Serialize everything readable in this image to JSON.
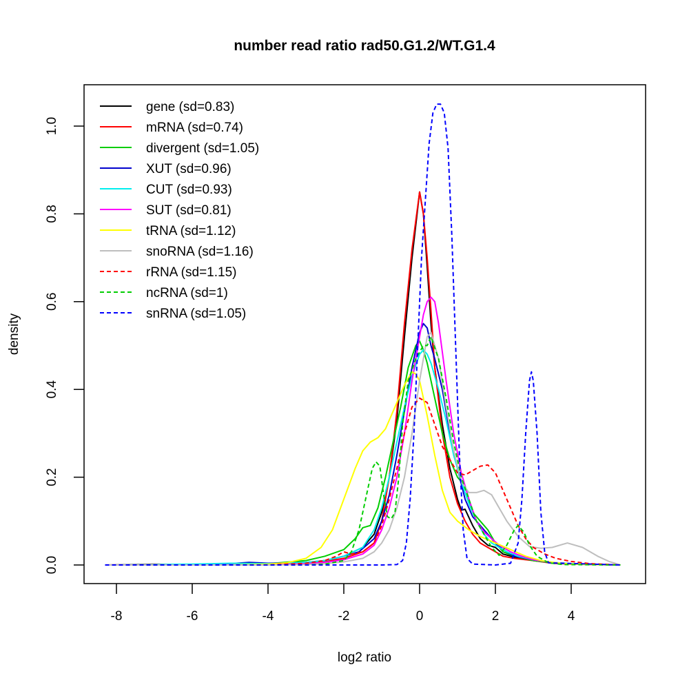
{
  "chart_data": {
    "type": "line",
    "title": "number read ratio rad50.G1.2/WT.G1.4",
    "xlabel": "log2 ratio",
    "ylabel": "density",
    "xlim": [
      -8.5,
      6.0
    ],
    "ylim": [
      -0.04,
      1.1
    ],
    "xticks": [
      -8,
      -6,
      -4,
      -2,
      0,
      2,
      4
    ],
    "xtick_labels": [
      "-8",
      "-6",
      "-4",
      "-2",
      "0",
      "2",
      "4"
    ],
    "yticks": [
      0.0,
      0.2,
      0.4,
      0.6,
      0.8,
      1.0
    ],
    "ytick_labels": [
      "0.0",
      "0.2",
      "0.4",
      "0.6",
      "0.8",
      "1.0"
    ],
    "grid": false,
    "legend_position": "top-left",
    "series": [
      {
        "name": "gene (sd=0.83)",
        "color": "#000000",
        "dash": "solid",
        "x": [
          -8.3,
          -6,
          -4,
          -3,
          -2.5,
          -2,
          -1.5,
          -1.2,
          -1.0,
          -0.8,
          -0.6,
          -0.4,
          -0.2,
          0.0,
          0.1,
          0.2,
          0.3,
          0.4,
          0.6,
          0.8,
          1.0,
          1.1,
          1.2,
          1.4,
          1.6,
          1.8,
          2.0,
          2.2,
          2.5,
          3.0,
          3.5,
          4.0,
          5.3
        ],
        "y": [
          0,
          0,
          0.002,
          0.005,
          0.01,
          0.02,
          0.04,
          0.07,
          0.12,
          0.2,
          0.33,
          0.52,
          0.7,
          0.85,
          0.8,
          0.68,
          0.55,
          0.45,
          0.32,
          0.22,
          0.15,
          0.125,
          0.127,
          0.09,
          0.06,
          0.045,
          0.04,
          0.025,
          0.018,
          0.01,
          0.005,
          0.002,
          0
        ]
      },
      {
        "name": "mRNA (sd=0.74)",
        "color": "#ff0000",
        "dash": "solid",
        "x": [
          -8.3,
          -7,
          -6,
          -4,
          -3,
          -2.5,
          -2,
          -1.5,
          -1.2,
          -1.0,
          -0.8,
          -0.6,
          -0.4,
          -0.2,
          0.0,
          0.1,
          0.2,
          0.3,
          0.4,
          0.6,
          0.8,
          1.0,
          1.2,
          1.4,
          1.6,
          1.8,
          2.0,
          2.2,
          2.5,
          3.0,
          3.5,
          4.0,
          5.3
        ],
        "y": [
          0,
          0.002,
          0,
          0.002,
          0.004,
          0.008,
          0.015,
          0.03,
          0.05,
          0.1,
          0.2,
          0.35,
          0.55,
          0.72,
          0.85,
          0.8,
          0.7,
          0.58,
          0.45,
          0.3,
          0.2,
          0.14,
          0.1,
          0.07,
          0.05,
          0.04,
          0.03,
          0.02,
          0.015,
          0.01,
          0.004,
          0.002,
          0
        ]
      },
      {
        "name": "divergent (sd=1.05)",
        "color": "#00cd00",
        "dash": "solid",
        "x": [
          -8.3,
          -6,
          -4,
          -3,
          -2.5,
          -2,
          -1.7,
          -1.5,
          -1.3,
          -1.1,
          -0.9,
          -0.7,
          -0.5,
          -0.3,
          -0.1,
          0.0,
          0.1,
          0.2,
          0.4,
          0.6,
          0.8,
          1.0,
          1.2,
          1.4,
          1.6,
          1.8,
          2.0,
          2.2,
          2.5,
          3.0,
          3.5,
          4.0,
          5.3
        ],
        "y": [
          0,
          0,
          0.003,
          0.01,
          0.02,
          0.035,
          0.06,
          0.085,
          0.09,
          0.13,
          0.2,
          0.28,
          0.36,
          0.45,
          0.5,
          0.51,
          0.49,
          0.46,
          0.38,
          0.3,
          0.24,
          0.2,
          0.18,
          0.12,
          0.1,
          0.08,
          0.05,
          0.03,
          0.02,
          0.01,
          0.005,
          0.003,
          0
        ]
      },
      {
        "name": "XUT (sd=0.96)",
        "color": "#0000cd",
        "dash": "solid",
        "x": [
          -8.3,
          -6,
          -5,
          -4.5,
          -4,
          -3,
          -2.5,
          -2,
          -1.6,
          -1.2,
          -1.0,
          -0.8,
          -0.6,
          -0.4,
          -0.2,
          0.0,
          0.1,
          0.2,
          0.3,
          0.4,
          0.6,
          0.8,
          1.0,
          1.2,
          1.4,
          1.6,
          1.8,
          2.0,
          2.2,
          2.5,
          3.0,
          3.5,
          4.0,
          5.3
        ],
        "y": [
          0,
          0,
          0.003,
          0.006,
          0.004,
          0.006,
          0.01,
          0.02,
          0.03,
          0.06,
          0.1,
          0.16,
          0.25,
          0.35,
          0.45,
          0.53,
          0.55,
          0.54,
          0.5,
          0.47,
          0.4,
          0.3,
          0.22,
          0.15,
          0.11,
          0.09,
          0.07,
          0.05,
          0.035,
          0.02,
          0.012,
          0.005,
          0.002,
          0
        ]
      },
      {
        "name": "CUT (sd=0.93)",
        "color": "#00eeee",
        "dash": "solid",
        "x": [
          -8.3,
          -6,
          -5,
          -4,
          -3,
          -2.5,
          -2,
          -1.5,
          -1.2,
          -1.0,
          -0.8,
          -0.6,
          -0.4,
          -0.2,
          0.0,
          0.1,
          0.2,
          0.3,
          0.5,
          0.7,
          0.9,
          1.1,
          1.3,
          1.5,
          1.7,
          1.9,
          2.1,
          2.3,
          2.6,
          3.0,
          3.5,
          4.0,
          5.3
        ],
        "y": [
          0,
          0.002,
          0.004,
          0.003,
          0.006,
          0.01,
          0.02,
          0.04,
          0.08,
          0.13,
          0.2,
          0.28,
          0.36,
          0.43,
          0.48,
          0.49,
          0.48,
          0.46,
          0.4,
          0.33,
          0.25,
          0.19,
          0.14,
          0.1,
          0.07,
          0.05,
          0.04,
          0.03,
          0.02,
          0.012,
          0.006,
          0.003,
          0
        ]
      },
      {
        "name": "SUT (sd=0.81)",
        "color": "#ff00ff",
        "dash": "solid",
        "x": [
          -8.3,
          -6,
          -4,
          -3,
          -2.5,
          -2,
          -1.5,
          -1.2,
          -1.0,
          -0.8,
          -0.6,
          -0.4,
          -0.2,
          0.0,
          0.1,
          0.2,
          0.3,
          0.4,
          0.5,
          0.7,
          0.9,
          1.1,
          1.3,
          1.5,
          1.7,
          1.9,
          2.1,
          2.4,
          2.7,
          3.0,
          3.5,
          4.0,
          5.3
        ],
        "y": [
          0,
          0,
          0.001,
          0.003,
          0.006,
          0.012,
          0.025,
          0.045,
          0.08,
          0.13,
          0.2,
          0.3,
          0.42,
          0.52,
          0.57,
          0.6,
          0.61,
          0.6,
          0.55,
          0.42,
          0.3,
          0.21,
          0.15,
          0.1,
          0.075,
          0.06,
          0.045,
          0.03,
          0.02,
          0.012,
          0.006,
          0.002,
          0
        ]
      },
      {
        "name": "tRNA (sd=1.12)",
        "color": "#ffff00",
        "dash": "solid",
        "x": [
          -8.3,
          -5,
          -4,
          -3.5,
          -3,
          -2.6,
          -2.3,
          -2,
          -1.7,
          -1.5,
          -1.3,
          -1.1,
          -0.9,
          -0.6,
          -0.4,
          -0.2,
          -0.1,
          0.0,
          0.2,
          0.4,
          0.6,
          0.8,
          1.0,
          1.3,
          1.6,
          2.0,
          2.4,
          2.8,
          3.2,
          3.6,
          4.0,
          5.3
        ],
        "y": [
          0,
          0,
          0.002,
          0.005,
          0.015,
          0.04,
          0.08,
          0.15,
          0.22,
          0.26,
          0.28,
          0.29,
          0.31,
          0.37,
          0.41,
          0.44,
          0.435,
          0.42,
          0.34,
          0.25,
          0.17,
          0.12,
          0.1,
          0.08,
          0.065,
          0.05,
          0.035,
          0.02,
          0.01,
          0.005,
          0.002,
          0
        ]
      },
      {
        "name": "snoRNA (sd=1.16)",
        "color": "#bebebe",
        "dash": "solid",
        "x": [
          -8.3,
          -4,
          -3,
          -2.5,
          -2,
          -1.5,
          -1.2,
          -1.0,
          -0.8,
          -0.6,
          -0.4,
          -0.2,
          0.0,
          0.2,
          0.3,
          0.5,
          0.7,
          0.9,
          1.1,
          1.3,
          1.5,
          1.7,
          1.9,
          2.1,
          2.3,
          2.6,
          2.9,
          3.2,
          3.5,
          3.9,
          4.3,
          4.7,
          5.0,
          5.3
        ],
        "y": [
          0,
          0,
          0.001,
          0.003,
          0.007,
          0.015,
          0.03,
          0.05,
          0.08,
          0.13,
          0.2,
          0.3,
          0.42,
          0.52,
          0.53,
          0.47,
          0.36,
          0.26,
          0.19,
          0.165,
          0.165,
          0.17,
          0.16,
          0.13,
          0.1,
          0.065,
          0.042,
          0.038,
          0.04,
          0.05,
          0.04,
          0.02,
          0.008,
          0
        ]
      },
      {
        "name": "rRNA (sd=1.15)",
        "color": "#ff0000",
        "dash": "dashed",
        "x": [
          -8.3,
          -4,
          -3,
          -2.5,
          -2.2,
          -2,
          -1.8,
          -1.5,
          -1.2,
          -1.0,
          -0.8,
          -0.6,
          -0.4,
          -0.2,
          0.0,
          0.2,
          0.4,
          0.6,
          0.8,
          1.0,
          1.2,
          1.4,
          1.6,
          1.8,
          2.0,
          2.2,
          2.4,
          2.6,
          2.8,
          3.0,
          3.3,
          3.6,
          4.0,
          4.5,
          5.3
        ],
        "y": [
          0,
          0,
          0.004,
          0.01,
          0.02,
          0.03,
          0.025,
          0.03,
          0.05,
          0.09,
          0.15,
          0.22,
          0.3,
          0.36,
          0.38,
          0.37,
          0.32,
          0.27,
          0.24,
          0.21,
          0.205,
          0.215,
          0.225,
          0.228,
          0.21,
          0.17,
          0.13,
          0.09,
          0.06,
          0.04,
          0.025,
          0.015,
          0.008,
          0.003,
          0
        ]
      },
      {
        "name": "ncRNA (sd=1)",
        "color": "#00cd00",
        "dash": "dashed",
        "x": [
          -8.3,
          -4,
          -3,
          -2.5,
          -2.0,
          -1.8,
          -1.6,
          -1.4,
          -1.25,
          -1.15,
          -1.05,
          -0.95,
          -0.85,
          -0.75,
          -0.65,
          -0.55,
          -0.45,
          -0.3,
          -0.1,
          0.1,
          0.2,
          0.3,
          0.5,
          0.7,
          0.9,
          1.1,
          1.3,
          1.5,
          1.7,
          1.9,
          2.1,
          2.3,
          2.5,
          2.6,
          2.75,
          2.9,
          3.1,
          3.4,
          3.8,
          5.3
        ],
        "y": [
          0,
          0,
          0,
          0.002,
          0.01,
          0.03,
          0.08,
          0.16,
          0.22,
          0.235,
          0.225,
          0.16,
          0.11,
          0.105,
          0.12,
          0.2,
          0.32,
          0.42,
          0.47,
          0.5,
          0.5,
          0.52,
          0.47,
          0.38,
          0.28,
          0.2,
          0.15,
          0.1,
          0.07,
          0.04,
          0.022,
          0.045,
          0.08,
          0.09,
          0.075,
          0.045,
          0.02,
          0.005,
          0.001,
          0
        ]
      },
      {
        "name": "snRNA (sd=1.05)",
        "color": "#0000ff",
        "dash": "dashed",
        "x": [
          -8.3,
          -1.0,
          -0.6,
          -0.45,
          -0.35,
          -0.25,
          -0.15,
          -0.05,
          0.05,
          0.15,
          0.25,
          0.35,
          0.45,
          0.55,
          0.65,
          0.75,
          0.85,
          0.95,
          1.05,
          1.15,
          1.25,
          1.4,
          2.0,
          2.4,
          2.6,
          2.7,
          2.8,
          2.9,
          2.95,
          3.0,
          3.1,
          3.2,
          3.3,
          3.4,
          5.3
        ],
        "y": [
          0,
          0,
          0.001,
          0.01,
          0.05,
          0.15,
          0.3,
          0.5,
          0.7,
          0.83,
          0.96,
          1.03,
          1.05,
          1.05,
          1.03,
          0.95,
          0.75,
          0.5,
          0.25,
          0.08,
          0.015,
          0.002,
          0,
          0.004,
          0.05,
          0.15,
          0.3,
          0.42,
          0.44,
          0.42,
          0.3,
          0.12,
          0.03,
          0.005,
          0
        ]
      }
    ]
  }
}
